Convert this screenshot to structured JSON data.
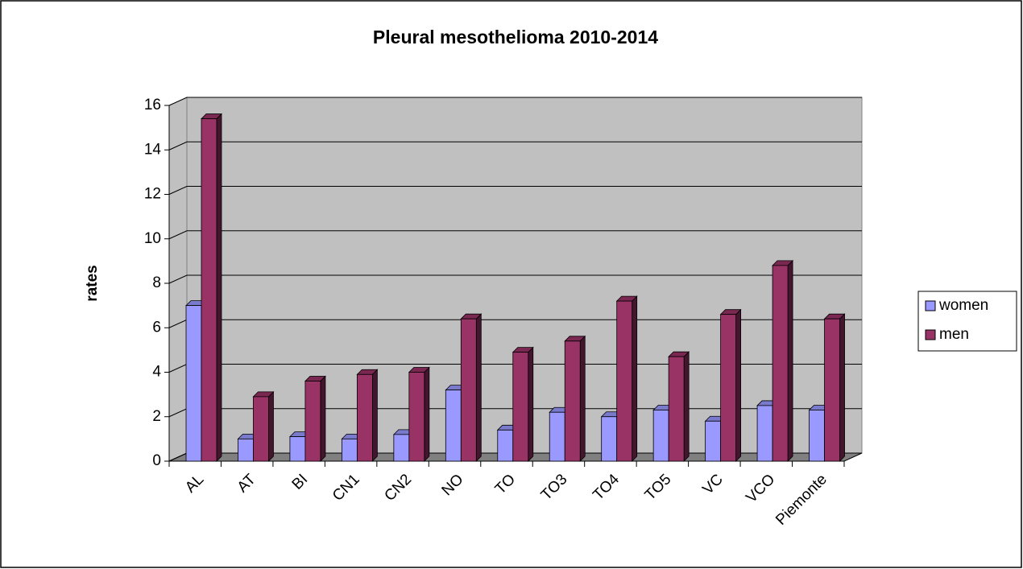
{
  "chart_data": {
    "type": "bar",
    "title": "Pleural mesothelioma 2010-2014",
    "y_label": "rates",
    "categories": [
      "AL",
      "AT",
      "BI",
      "CN1",
      "CN2",
      "NO",
      "TO",
      "TO3",
      "TO4",
      "TO5",
      "VC",
      "VCO",
      "Piemonte"
    ],
    "series": [
      {
        "name": "women",
        "color": "#9999ff",
        "values": [
          7.0,
          1.0,
          1.1,
          1.0,
          1.2,
          3.2,
          1.4,
          2.2,
          2.0,
          2.3,
          1.8,
          2.5,
          2.3
        ]
      },
      {
        "name": "men",
        "color": "#993366",
        "values": [
          15.4,
          2.9,
          3.6,
          3.9,
          4.0,
          6.4,
          4.9,
          5.4,
          7.2,
          4.7,
          6.6,
          8.8,
          6.4
        ]
      }
    ],
    "ylim": [
      0,
      16
    ],
    "yticks": [
      0,
      2,
      4,
      6,
      8,
      10,
      12,
      14,
      16
    ],
    "grid": true,
    "legend": "right"
  }
}
